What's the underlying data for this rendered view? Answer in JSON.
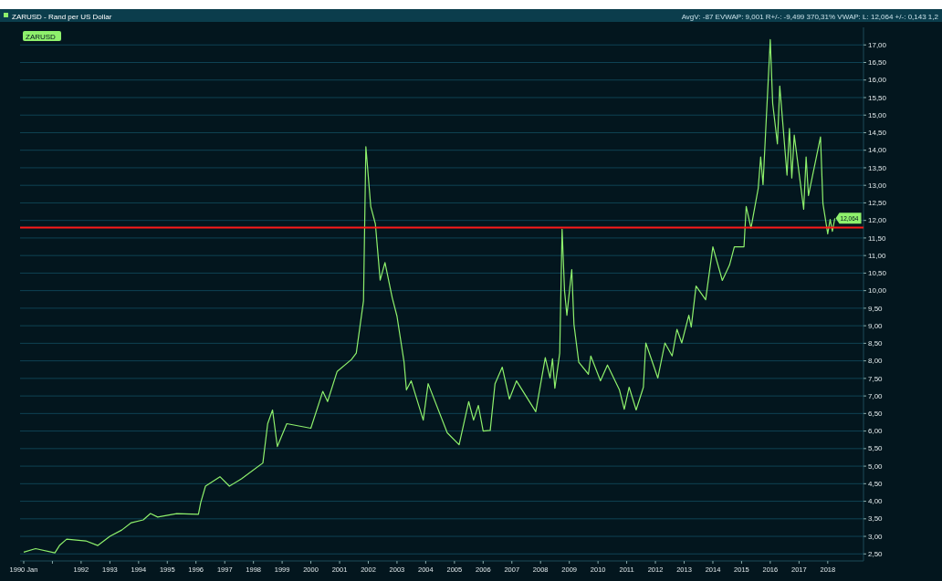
{
  "chart_data": {
    "type": "line",
    "title": "ZARUSD - Rand per US Dollar",
    "subtitle": "AvgV: -87  EVWAP: 9,001  R+/-: -9,499  370,31%  VWAP:  L: 12,064  +/-: 0,143  1,2",
    "x": [
      "1990-01",
      "1990-06",
      "1991-02",
      "1991-04",
      "1991-07",
      "1992-03",
      "1992-08",
      "1993-01",
      "1993-06",
      "1993-10",
      "1994-03",
      "1994-06",
      "1994-09",
      "1995-05",
      "1996-02",
      "1996-03",
      "1996-05",
      "1996-11",
      "1997-03",
      "1997-08",
      "1998-05",
      "1998-07",
      "1998-09",
      "1998-11",
      "1999-03",
      "2000-01",
      "2000-06",
      "2000-08",
      "2000-12",
      "2001-06",
      "2001-08",
      "2001-11",
      "2001-12",
      "2002-02",
      "2002-04",
      "2002-06",
      "2002-08",
      "2002-11",
      "2003-01",
      "2003-04",
      "2003-05",
      "2003-07",
      "2003-12",
      "2004-02",
      "2004-10",
      "2005-03",
      "2005-07",
      "2005-09",
      "2005-11",
      "2006-01",
      "2006-04",
      "2006-06",
      "2006-09",
      "2006-12",
      "2007-03",
      "2007-11",
      "2008-03",
      "2008-05",
      "2008-06",
      "2008-07",
      "2008-09",
      "2008-10",
      "2008-11",
      "2008-12",
      "2009-02",
      "2009-03",
      "2009-05",
      "2009-09",
      "2009-10",
      "2010-02",
      "2010-05",
      "2010-10",
      "2010-12",
      "2011-02",
      "2011-05",
      "2011-08",
      "2011-09",
      "2012-02",
      "2012-05",
      "2012-08",
      "2012-10",
      "2012-12",
      "2013-03",
      "2013-04",
      "2013-06",
      "2013-10",
      "2014-01",
      "2014-05",
      "2014-08",
      "2014-10",
      "2015-02",
      "2015-03",
      "2015-05",
      "2015-08",
      "2015-09",
      "2015-10",
      "2015-11",
      "2016-01",
      "2016-02",
      "2016-04",
      "2016-05",
      "2016-08",
      "2016-09",
      "2016-10",
      "2016-11",
      "2017-03",
      "2017-04",
      "2017-05",
      "2017-10",
      "2017-11",
      "2018-01",
      "2018-02",
      "2018-03",
      "2018-04"
    ],
    "series": [
      {
        "name": "ZARUSD",
        "color": "#8ef06c",
        "values": [
          2.55,
          2.65,
          2.53,
          2.74,
          2.92,
          2.87,
          2.74,
          3.0,
          3.18,
          3.39,
          3.47,
          3.65,
          3.55,
          3.65,
          3.63,
          3.96,
          4.43,
          4.7,
          4.43,
          4.64,
          5.09,
          6.21,
          6.6,
          5.56,
          6.21,
          6.08,
          7.13,
          6.84,
          7.7,
          8.04,
          8.22,
          9.71,
          14.1,
          12.4,
          11.9,
          10.3,
          10.8,
          9.8,
          9.27,
          7.96,
          7.17,
          7.43,
          6.31,
          7.35,
          5.95,
          5.61,
          6.84,
          6.31,
          6.73,
          6.0,
          6.02,
          7.35,
          7.82,
          6.91,
          7.43,
          6.55,
          8.09,
          7.51,
          8.06,
          7.22,
          8.22,
          11.75,
          10.0,
          9.3,
          10.6,
          9.04,
          7.96,
          7.62,
          8.14,
          7.43,
          7.88,
          7.17,
          6.62,
          7.25,
          6.6,
          7.25,
          8.51,
          7.51,
          8.51,
          8.14,
          8.9,
          8.51,
          9.3,
          8.96,
          10.13,
          9.74,
          11.25,
          10.29,
          10.73,
          11.25,
          11.25,
          12.4,
          11.78,
          12.92,
          13.81,
          13.02,
          14.43,
          17.15,
          15.33,
          14.18,
          15.83,
          13.29,
          14.62,
          13.21,
          14.43,
          12.32,
          13.81,
          12.71,
          14.38,
          12.48,
          11.62,
          12.03,
          11.69,
          12.06
        ]
      }
    ],
    "xlim": [
      "1990-01",
      "2019-04"
    ],
    "xticks": [
      {
        "value": "1990-01",
        "label": "1990 Jan"
      },
      {
        "value": "1991",
        "label": null
      },
      {
        "value": "1992",
        "label": "1992"
      },
      {
        "value": "1993",
        "label": "1993"
      },
      {
        "value": "1994",
        "label": "1994"
      },
      {
        "value": "1995",
        "label": "1995"
      },
      {
        "value": "1996",
        "label": "1996"
      },
      {
        "value": "1997",
        "label": "1997"
      },
      {
        "value": "1998",
        "label": "1998"
      },
      {
        "value": "1999",
        "label": "1999"
      },
      {
        "value": "2000",
        "label": "2000"
      },
      {
        "value": "2001",
        "label": "2001"
      },
      {
        "value": "2002",
        "label": "2002"
      },
      {
        "value": "2003",
        "label": "2003"
      },
      {
        "value": "2004",
        "label": "2004"
      },
      {
        "value": "2005",
        "label": "2005"
      },
      {
        "value": "2006",
        "label": "2006"
      },
      {
        "value": "2007",
        "label": "2007"
      },
      {
        "value": "2008",
        "label": "2008"
      },
      {
        "value": "2009",
        "label": "2009"
      },
      {
        "value": "2010",
        "label": "2010"
      },
      {
        "value": "2011",
        "label": "2011"
      },
      {
        "value": "2012",
        "label": "2012"
      },
      {
        "value": "2013",
        "label": "2013"
      },
      {
        "value": "2014",
        "label": "2014"
      },
      {
        "value": "2015",
        "label": "2015"
      },
      {
        "value": "2016",
        "label": "2016"
      },
      {
        "value": "2017",
        "label": "2017"
      },
      {
        "value": "2018",
        "label": "2018"
      }
    ],
    "ylim": [
      2.3,
      17.5
    ],
    "yticks": [
      {
        "value": 2.5,
        "label": "2,50"
      },
      {
        "value": 3,
        "label": "3,00"
      },
      {
        "value": 3.5,
        "label": "3,50"
      },
      {
        "value": 4,
        "label": "4,00"
      },
      {
        "value": 4.5,
        "label": "4,50"
      },
      {
        "value": 5,
        "label": "5,00"
      },
      {
        "value": 5.5,
        "label": "5,50"
      },
      {
        "value": 6,
        "label": "6,00"
      },
      {
        "value": 6.5,
        "label": "6,50"
      },
      {
        "value": 7,
        "label": "7,00"
      },
      {
        "value": 7.5,
        "label": "7,50"
      },
      {
        "value": 8,
        "label": "8,00"
      },
      {
        "value": 8.5,
        "label": "8,50"
      },
      {
        "value": 9,
        "label": "9,00"
      },
      {
        "value": 9.5,
        "label": "9,50"
      },
      {
        "value": 10,
        "label": "10,00"
      },
      {
        "value": 10.5,
        "label": "10,50"
      },
      {
        "value": 11,
        "label": "11,00"
      },
      {
        "value": 11.5,
        "label": "11,50"
      },
      {
        "value": 12,
        "label": "12,00"
      },
      {
        "value": 12.5,
        "label": "12,50"
      },
      {
        "value": 13,
        "label": "13,00"
      },
      {
        "value": 13.5,
        "label": "13,50"
      },
      {
        "value": 14,
        "label": "14,00"
      },
      {
        "value": 14.5,
        "label": "14,50"
      },
      {
        "value": 15,
        "label": "15,00"
      },
      {
        "value": 15.5,
        "label": "15,50"
      },
      {
        "value": 16,
        "label": "16,00"
      },
      {
        "value": 16.5,
        "label": "16,50"
      },
      {
        "value": 17,
        "label": "17,00"
      }
    ],
    "ref_lines": [
      {
        "axis": "y",
        "value": 11.8,
        "color": "#ff1a1a"
      }
    ],
    "annotations": [
      {
        "text": "12,064",
        "x": "2018-04",
        "y": 12.06
      }
    ],
    "grid": "y",
    "legend": "top left",
    "marker": "none",
    "line_style": "solid"
  }
}
